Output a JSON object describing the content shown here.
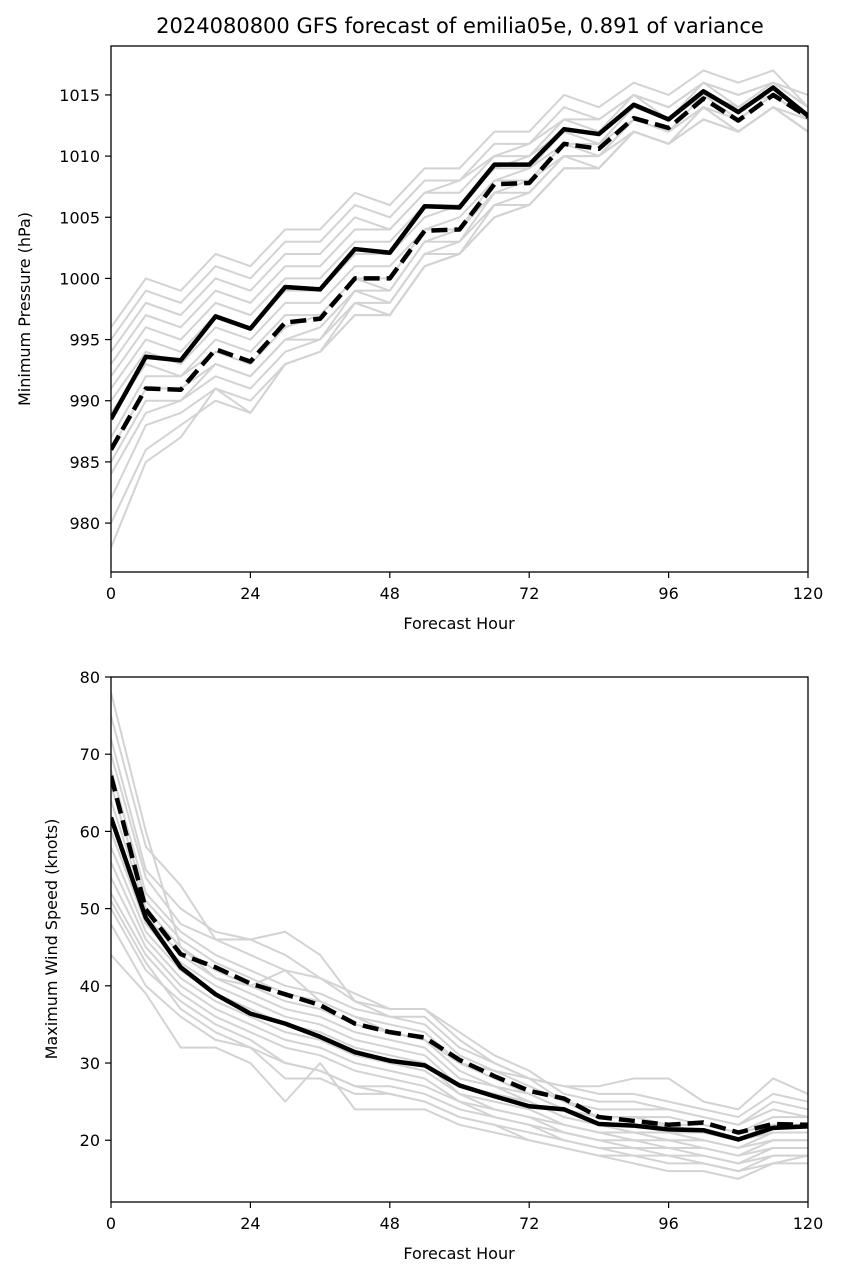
{
  "chart_data": [
    {
      "type": "line",
      "title": "2024080800 GFS forecast of emilia05e, 0.891 of variance",
      "xlabel": "Forecast Hour",
      "ylabel": "Minimum Pressure (hPa)",
      "xlim": [
        0,
        120
      ],
      "ylim": [
        976,
        1019
      ],
      "xticks": [
        0,
        24,
        48,
        72,
        96,
        120
      ],
      "yticks": [
        980,
        985,
        990,
        995,
        1000,
        1005,
        1010,
        1015
      ],
      "x": [
        0,
        6,
        12,
        18,
        24,
        30,
        36,
        42,
        48,
        54,
        60,
        66,
        72,
        78,
        84,
        90,
        96,
        102,
        108,
        114,
        120
      ],
      "grid": false,
      "legend": "none",
      "colors": {
        "ensemble": "#d3d3d3",
        "main": "#000000"
      },
      "ensemble": [
        [
          996,
          1000,
          999,
          1002,
          1001,
          1004,
          1004,
          1007,
          1006,
          1009,
          1009,
          1012,
          1012,
          1015,
          1014,
          1016,
          1015,
          1017,
          1016,
          1017,
          1014
        ],
        [
          995,
          999,
          998,
          1001,
          1000,
          1003,
          1003,
          1006,
          1005,
          1008,
          1008,
          1011,
          1011,
          1014,
          1013,
          1015,
          1014,
          1016,
          1015,
          1016,
          1014
        ],
        [
          994,
          998,
          997,
          1000,
          999,
          1002,
          1002,
          1005,
          1004,
          1007,
          1008,
          1010,
          1011,
          1013,
          1013,
          1015,
          1014,
          1016,
          1015,
          1016,
          1015
        ],
        [
          993,
          997,
          996,
          999,
          998,
          1001,
          1001,
          1004,
          1004,
          1007,
          1007,
          1010,
          1010,
          1013,
          1012,
          1015,
          1013,
          1016,
          1014,
          1016,
          1014
        ],
        [
          992,
          996,
          995,
          998,
          997,
          1000,
          1000,
          1003,
          1003,
          1006,
          1006,
          1009,
          1010,
          1012,
          1012,
          1014,
          1013,
          1015,
          1014,
          1016,
          1014
        ],
        [
          991,
          995,
          994,
          997,
          996,
          999,
          999,
          1002,
          1002,
          1005,
          1006,
          1009,
          1009,
          1012,
          1011,
          1014,
          1013,
          1015,
          1014,
          1015,
          1013
        ],
        [
          990,
          994,
          993,
          996,
          995,
          998,
          998,
          1001,
          1001,
          1004,
          1005,
          1008,
          1009,
          1011,
          1011,
          1013,
          1012,
          1015,
          1013,
          1015,
          1013
        ],
        [
          989,
          993,
          992,
          995,
          994,
          997,
          997,
          1000,
          1000,
          1004,
          1004,
          1008,
          1008,
          1011,
          1010,
          1013,
          1012,
          1014,
          1013,
          1015,
          1013
        ],
        [
          987,
          992,
          992,
          994,
          993,
          996,
          997,
          1000,
          999,
          1003,
          1004,
          1007,
          1008,
          1010,
          1010,
          1013,
          1012,
          1014,
          1013,
          1015,
          1013
        ],
        [
          986,
          991,
          991,
          993,
          992,
          995,
          996,
          999,
          999,
          1003,
          1003,
          1007,
          1007,
          1010,
          1010,
          1012,
          1011,
          1014,
          1012,
          1014,
          1013
        ],
        [
          985,
          990,
          990,
          993,
          992,
          995,
          995,
          999,
          998,
          1002,
          1003,
          1006,
          1007,
          1010,
          1009,
          1012,
          1011,
          1014,
          1012,
          1014,
          1012
        ],
        [
          984,
          989,
          990,
          992,
          991,
          994,
          995,
          998,
          998,
          1002,
          1002,
          1006,
          1006,
          1009,
          1009,
          1012,
          1011,
          1013,
          1012,
          1014,
          1012
        ],
        [
          982,
          988,
          989,
          991,
          990,
          993,
          994,
          998,
          997,
          1001,
          1002,
          1005,
          1006,
          1009,
          1009,
          1012,
          1011,
          1013,
          1012,
          1014,
          1012
        ],
        [
          980,
          986,
          988,
          990,
          989,
          993,
          994,
          997,
          997,
          1001,
          1002,
          1005,
          1006,
          1009,
          1009,
          1012,
          1011,
          1013,
          1012,
          1014,
          1012
        ],
        [
          978,
          985,
          987,
          991,
          989,
          993,
          994,
          997,
          997,
          1001,
          1002,
          1005,
          1006,
          1009,
          1009,
          1012,
          1011,
          1013,
          1012,
          1014,
          1012
        ]
      ],
      "series": [
        {
          "style": "solid",
          "values": [
            988.5,
            993.6,
            993.3,
            996.9,
            995.9,
            999.3,
            999.1,
            1002.4,
            1002.1,
            1005.9,
            1005.8,
            1009.3,
            1009.3,
            1012.2,
            1011.8,
            1014.2,
            1013.0,
            1015.3,
            1013.6,
            1015.6,
            1013.3
          ]
        },
        {
          "style": "dashed",
          "values": [
            986.0,
            991.0,
            990.9,
            994.2,
            993.2,
            996.4,
            996.7,
            1000.0,
            1000.0,
            1003.9,
            1004.0,
            1007.7,
            1007.8,
            1011.0,
            1010.6,
            1013.1,
            1012.3,
            1014.7,
            1012.9,
            1015.0,
            1013.2
          ]
        }
      ]
    },
    {
      "type": "line",
      "title": "",
      "xlabel": "Forecast Hour",
      "ylabel": "Maximum Wind Speed (knots)",
      "xlim": [
        0,
        120
      ],
      "ylim": [
        12,
        80
      ],
      "xticks": [
        0,
        24,
        48,
        72,
        96,
        120
      ],
      "yticks": [
        20,
        30,
        40,
        50,
        60,
        70,
        80
      ],
      "x": [
        0,
        6,
        12,
        18,
        24,
        30,
        36,
        42,
        48,
        54,
        60,
        66,
        72,
        78,
        84,
        90,
        96,
        102,
        108,
        114,
        120
      ],
      "grid": false,
      "legend": "none",
      "colors": {
        "ensemble": "#d3d3d3",
        "main": "#000000"
      },
      "ensemble": [
        [
          78,
          60,
          45,
          41,
          40,
          42,
          38,
          36,
          34,
          33,
          30,
          29,
          28,
          27,
          27,
          28,
          28,
          25,
          24,
          28,
          26
        ],
        [
          75,
          58,
          53,
          46,
          46,
          47,
          44,
          38,
          36,
          36,
          32,
          30,
          28,
          27,
          26,
          26,
          25,
          24,
          23,
          26,
          25
        ],
        [
          72,
          55,
          50,
          47,
          46,
          44,
          41,
          39,
          37,
          37,
          34,
          31,
          29,
          26,
          25,
          25,
          24,
          23,
          22,
          25,
          24
        ],
        [
          70,
          54,
          48,
          46,
          44,
          42,
          41,
          38,
          37,
          37,
          33,
          30,
          28,
          25,
          24,
          24,
          24,
          23,
          22,
          24,
          23
        ],
        [
          68,
          52,
          47,
          44,
          42,
          40,
          39,
          37,
          36,
          35,
          31,
          29,
          27,
          25,
          23,
          23,
          23,
          22,
          21,
          23,
          23
        ],
        [
          66,
          51,
          46,
          43,
          41,
          39,
          38,
          36,
          35,
          34,
          30,
          28,
          26,
          24,
          23,
          23,
          22,
          22,
          21,
          22,
          22
        ],
        [
          64,
          50,
          45,
          42,
          40,
          38,
          37,
          35,
          34,
          33,
          29,
          27,
          26,
          24,
          22,
          22,
          22,
          21,
          20,
          22,
          22
        ],
        [
          62,
          49,
          44,
          41,
          39,
          37,
          36,
          34,
          33,
          32,
          28,
          27,
          25,
          23,
          22,
          22,
          21,
          21,
          20,
          21,
          21
        ],
        [
          60,
          48,
          43,
          40,
          38,
          36,
          35,
          33,
          32,
          31,
          27,
          26,
          25,
          23,
          22,
          21,
          21,
          20,
          19,
          21,
          21
        ],
        [
          58,
          47,
          42,
          39,
          37,
          35,
          34,
          32,
          31,
          30,
          26,
          25,
          24,
          22,
          21,
          21,
          20,
          20,
          19,
          20,
          20
        ],
        [
          56,
          46,
          41,
          38,
          36,
          34,
          33,
          31,
          30,
          29,
          26,
          24,
          23,
          22,
          21,
          20,
          20,
          19,
          18,
          20,
          20
        ],
        [
          54,
          45,
          40,
          37,
          35,
          33,
          32,
          30,
          29,
          28,
          25,
          24,
          23,
          21,
          20,
          20,
          19,
          19,
          18,
          19,
          19
        ],
        [
          52,
          44,
          39,
          36,
          34,
          32,
          31,
          29,
          28,
          27,
          25,
          23,
          22,
          21,
          20,
          19,
          19,
          18,
          17,
          19,
          19
        ],
        [
          50,
          42,
          38,
          35,
          33,
          30,
          29,
          27,
          27,
          26,
          24,
          23,
          22,
          20,
          19,
          19,
          18,
          18,
          17,
          18,
          18
        ],
        [
          48,
          40,
          36,
          33,
          32,
          28,
          28,
          26,
          26,
          25,
          23,
          22,
          21,
          20,
          19,
          18,
          18,
          17,
          16,
          18,
          18
        ],
        [
          44,
          39,
          32,
          32,
          30,
          25,
          30,
          24,
          24,
          24,
          22,
          21,
          20,
          19,
          18,
          17,
          16,
          16,
          15,
          17,
          17
        ],
        [
          51,
          43,
          37,
          34,
          32,
          30,
          29,
          27,
          26,
          25,
          23,
          22,
          20,
          19,
          18,
          18,
          17,
          17,
          16,
          17,
          18
        ]
      ],
      "series": [
        {
          "style": "solid",
          "values": [
            61.8,
            48.8,
            42.4,
            38.9,
            36.4,
            35.1,
            33.4,
            31.4,
            30.3,
            29.7,
            27.1,
            25.7,
            24.4,
            24.0,
            22.1,
            21.9,
            21.4,
            21.3,
            20.1,
            21.6,
            21.8
          ]
        },
        {
          "style": "dashed",
          "values": [
            67.2,
            49.9,
            44.1,
            42.4,
            40.3,
            38.9,
            37.5,
            35.1,
            34.0,
            33.3,
            30.4,
            28.3,
            26.4,
            25.4,
            23.0,
            22.5,
            22.0,
            22.3,
            21.0,
            22.1,
            22.0
          ]
        }
      ]
    }
  ]
}
